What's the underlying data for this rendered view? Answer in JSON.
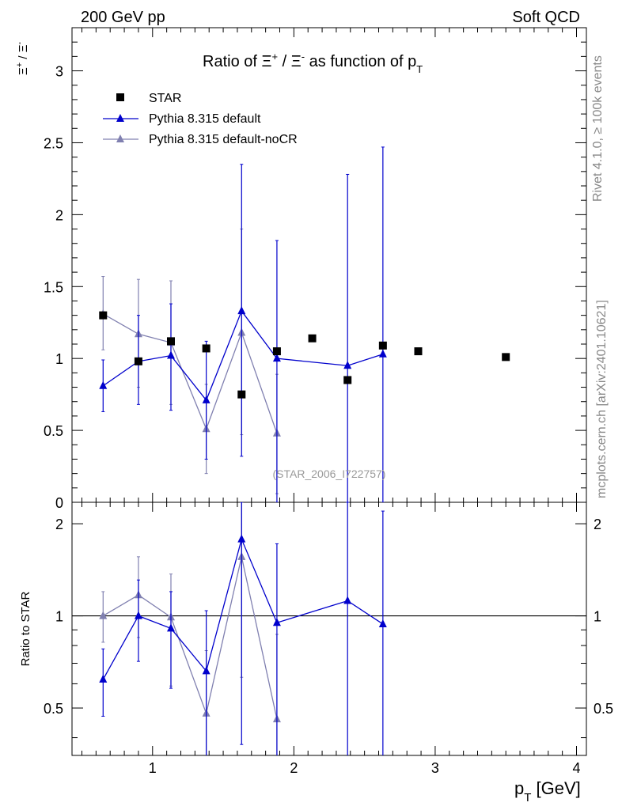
{
  "header": {
    "left": "200 GeV pp",
    "right": "Soft QCD"
  },
  "side": {
    "rivet": "Rivet 4.1.0, ≥ 100k events",
    "mcplots": "mcplots.cern.ch [arXiv:2401.10621]"
  },
  "chart_data": {
    "type": "scatter",
    "title": "Ratio of Ξ⁺ / Ξ⁻ as function of p_T",
    "xlabel": "p_T [GeV]",
    "ylabel": "Ξ⁺ / Ξ⁻",
    "ratio_ylabel": "Ratio to STAR",
    "analysis_id": "(STAR_2006_I722757)",
    "xlim": [
      0.43,
      4.07
    ],
    "ylim": [
      0,
      3.3
    ],
    "ratio_ylim": [
      0.35,
      2.35
    ],
    "x_ticks": [
      "1",
      "2",
      "3",
      "4"
    ],
    "y_ticks": [
      "0",
      "0.5",
      "1",
      "1.5",
      "2",
      "2.5",
      "3"
    ],
    "ratio_ticks": [
      "0.5",
      "1",
      "2"
    ],
    "legend_position": "top-left",
    "series": [
      {
        "name": "STAR",
        "color": "#000000",
        "marker": "square",
        "x": [
          0.65,
          0.9,
          1.13,
          1.38,
          1.63,
          1.88,
          2.13,
          2.38,
          2.63,
          2.88,
          3.5
        ],
        "y": [
          1.3,
          0.98,
          1.12,
          1.07,
          0.75,
          1.05,
          1.14,
          0.85,
          1.09,
          1.05,
          1.01
        ]
      },
      {
        "name": "Pythia 8.315 default",
        "color": "#0000cc",
        "marker": "triangle",
        "x": [
          0.65,
          0.9,
          1.13,
          1.38,
          1.63,
          1.88,
          2.38,
          2.63
        ],
        "y": [
          0.81,
          0.98,
          1.02,
          0.71,
          1.33,
          1.0,
          0.95,
          1.03
        ],
        "err_low": [
          0.63,
          0.68,
          0.64,
          0.3,
          0.32,
          0.0,
          0.0,
          0.0
        ],
        "err_high": [
          0.99,
          1.3,
          1.38,
          1.12,
          2.35,
          1.82,
          2.28,
          2.47
        ],
        "ratio": [
          0.62,
          1.0,
          0.91,
          0.66,
          1.78,
          0.95,
          1.12,
          0.94
        ],
        "ratio_low": [
          0.47,
          0.71,
          0.58,
          0.27,
          0.38,
          0.0,
          0.0,
          0.0
        ],
        "ratio_high": [
          0.78,
          1.31,
          1.2,
          1.04,
          2.35,
          1.72,
          2.35,
          2.2
        ]
      },
      {
        "name": "Pythia 8.315 default-noCR",
        "color": "#8080b0",
        "marker": "triangle",
        "x": [
          0.65,
          0.9,
          1.13,
          1.38,
          1.63,
          1.88
        ],
        "y": [
          1.31,
          1.17,
          1.11,
          0.51,
          1.18,
          0.48
        ],
        "err_low": [
          1.06,
          0.8,
          0.68,
          0.2,
          0.47,
          0.06
        ],
        "err_high": [
          1.57,
          1.55,
          1.54,
          0.82,
          1.9,
          0.89
        ],
        "ratio": [
          1.0,
          1.17,
          0.99,
          0.48,
          1.56,
          0.46
        ],
        "ratio_low": [
          0.82,
          0.85,
          0.59,
          0.19,
          0.63,
          0.07
        ],
        "ratio_high": [
          1.2,
          1.56,
          1.37,
          0.77,
          2.35,
          0.87
        ]
      }
    ]
  }
}
